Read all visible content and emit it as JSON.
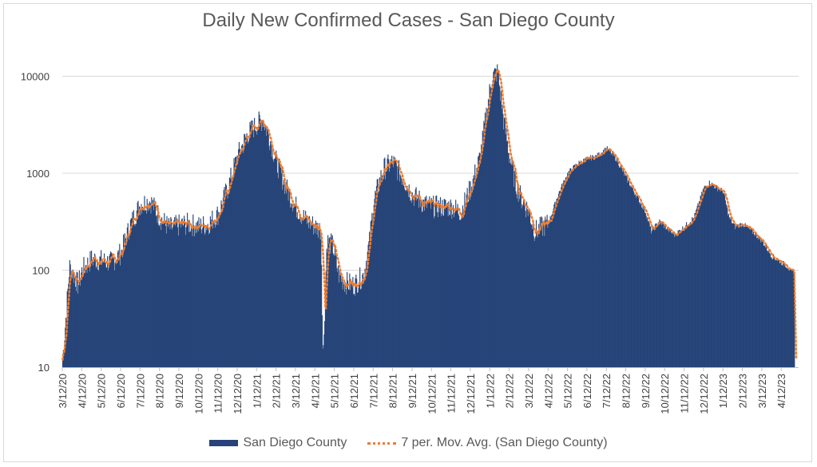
{
  "chart_data": {
    "type": "bar",
    "title": "Daily New Confirmed Cases - San Diego County",
    "xlabel": "",
    "ylabel": "",
    "y_scale": "log",
    "ylim": [
      10,
      20000
    ],
    "y_ticks": [
      "10",
      "100",
      "1000",
      "10000"
    ],
    "y_tick_values": [
      10,
      100,
      1000,
      10000
    ],
    "x_tick_labels": [
      "3/12/20",
      "4/12/20",
      "5/12/20",
      "6/12/20",
      "7/12/20",
      "8/12/20",
      "9/12/20",
      "10/12/20",
      "11/12/20",
      "12/12/20",
      "1/12/21",
      "2/12/21",
      "3/12/21",
      "4/12/21",
      "5/12/21",
      "6/12/21",
      "7/12/21",
      "8/12/21",
      "9/12/21",
      "10/12/21",
      "11/12/21",
      "12/12/21",
      "1/12/22",
      "2/12/22",
      "3/12/22",
      "4/12/22",
      "5/12/22",
      "6/12/22",
      "7/12/22",
      "8/12/22",
      "9/12/22",
      "10/12/22",
      "11/12/22",
      "12/12/22",
      "1/12/23",
      "2/12/23",
      "3/12/23",
      "4/12/23"
    ],
    "grid": true,
    "legend_position": "bottom",
    "series": [
      {
        "name": "San Diego County",
        "kind": "bar",
        "color": "#264478",
        "approx_daily_values_by_month_index": [
          {
            "m": 0.0,
            "v": 12
          },
          {
            "m": 0.2,
            "v": 40
          },
          {
            "m": 0.35,
            "v": 110
          },
          {
            "m": 0.55,
            "v": 90
          },
          {
            "m": 0.8,
            "v": 70
          },
          {
            "m": 1.0,
            "v": 100
          },
          {
            "m": 1.5,
            "v": 130
          },
          {
            "m": 2.0,
            "v": 125
          },
          {
            "m": 2.5,
            "v": 120
          },
          {
            "m": 3.0,
            "v": 150
          },
          {
            "m": 3.5,
            "v": 300
          },
          {
            "m": 4.0,
            "v": 480
          },
          {
            "m": 4.5,
            "v": 520
          },
          {
            "m": 5.0,
            "v": 350
          },
          {
            "m": 5.5,
            "v": 270
          },
          {
            "m": 6.0,
            "v": 290
          },
          {
            "m": 6.5,
            "v": 300
          },
          {
            "m": 7.0,
            "v": 280
          },
          {
            "m": 7.5,
            "v": 300
          },
          {
            "m": 8.0,
            "v": 380
          },
          {
            "m": 8.5,
            "v": 700
          },
          {
            "m": 9.0,
            "v": 1500
          },
          {
            "m": 9.5,
            "v": 2500
          },
          {
            "m": 10.0,
            "v": 3200
          },
          {
            "m": 10.3,
            "v": 3600
          },
          {
            "m": 10.6,
            "v": 2500
          },
          {
            "m": 11.0,
            "v": 1300
          },
          {
            "m": 11.5,
            "v": 700
          },
          {
            "m": 12.0,
            "v": 450
          },
          {
            "m": 12.5,
            "v": 330
          },
          {
            "m": 13.0,
            "v": 280
          },
          {
            "m": 13.3,
            "v": 260
          },
          {
            "m": 13.4,
            "v": 11
          },
          {
            "m": 13.6,
            "v": 200
          },
          {
            "m": 13.9,
            "v": 180
          },
          {
            "m": 14.2,
            "v": 90
          },
          {
            "m": 14.5,
            "v": 75
          },
          {
            "m": 15.0,
            "v": 70
          },
          {
            "m": 15.5,
            "v": 90
          },
          {
            "m": 15.8,
            "v": 200
          },
          {
            "m": 16.0,
            "v": 500
          },
          {
            "m": 16.5,
            "v": 1100
          },
          {
            "m": 17.0,
            "v": 1300
          },
          {
            "m": 17.5,
            "v": 900
          },
          {
            "m": 18.0,
            "v": 600
          },
          {
            "m": 18.5,
            "v": 500
          },
          {
            "m": 19.0,
            "v": 450
          },
          {
            "m": 19.5,
            "v": 450
          },
          {
            "m": 20.0,
            "v": 450
          },
          {
            "m": 20.5,
            "v": 400
          },
          {
            "m": 21.0,
            "v": 700
          },
          {
            "m": 21.5,
            "v": 1500
          },
          {
            "m": 21.8,
            "v": 4000
          },
          {
            "m": 22.1,
            "v": 10000
          },
          {
            "m": 22.4,
            "v": 11000
          },
          {
            "m": 22.7,
            "v": 3500
          },
          {
            "m": 23.0,
            "v": 1500
          },
          {
            "m": 23.3,
            "v": 800
          },
          {
            "m": 23.6,
            "v": 550
          },
          {
            "m": 24.0,
            "v": 400
          },
          {
            "m": 24.3,
            "v": 250
          },
          {
            "m": 24.7,
            "v": 280
          },
          {
            "m": 25.0,
            "v": 300
          },
          {
            "m": 25.5,
            "v": 600
          },
          {
            "m": 26.0,
            "v": 1000
          },
          {
            "m": 26.5,
            "v": 1250
          },
          {
            "m": 27.0,
            "v": 1400
          },
          {
            "m": 27.5,
            "v": 1500
          },
          {
            "m": 28.0,
            "v": 1800
          },
          {
            "m": 28.5,
            "v": 1400
          },
          {
            "m": 29.0,
            "v": 900
          },
          {
            "m": 29.5,
            "v": 600
          },
          {
            "m": 30.0,
            "v": 400
          },
          {
            "m": 30.3,
            "v": 250
          },
          {
            "m": 30.7,
            "v": 320
          },
          {
            "m": 31.0,
            "v": 280
          },
          {
            "m": 31.5,
            "v": 230
          },
          {
            "m": 32.0,
            "v": 280
          },
          {
            "m": 32.5,
            "v": 350
          },
          {
            "m": 33.0,
            "v": 700
          },
          {
            "m": 33.3,
            "v": 800
          },
          {
            "m": 33.7,
            "v": 700
          },
          {
            "m": 34.0,
            "v": 650
          },
          {
            "m": 34.3,
            "v": 350
          },
          {
            "m": 34.6,
            "v": 280
          },
          {
            "m": 35.0,
            "v": 300
          },
          {
            "m": 35.5,
            "v": 250
          },
          {
            "m": 36.0,
            "v": 200
          },
          {
            "m": 36.5,
            "v": 140
          },
          {
            "m": 37.0,
            "v": 120
          },
          {
            "m": 37.3,
            "v": 110
          },
          {
            "m": 37.5,
            "v": 95
          }
        ]
      },
      {
        "name": "7 per. Mov. Avg. (San Diego County)",
        "kind": "line",
        "style": "dotted",
        "color": "#ed7d31"
      }
    ]
  },
  "legend": {
    "bar_label": "San Diego County",
    "line_label": "7 per. Mov. Avg. (San Diego County)"
  }
}
